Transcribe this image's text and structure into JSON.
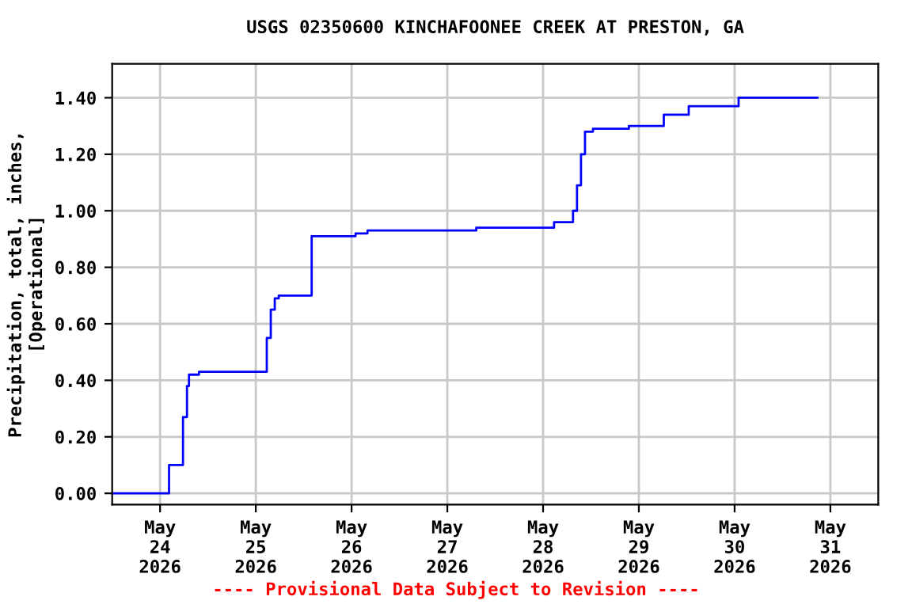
{
  "chart_data": {
    "type": "step",
    "title": "USGS 02350600 KINCHAFOONEE CREEK AT PRESTON, GA",
    "ylabel": "Precipitation, total, inches,\n[Operational]",
    "annotations": [
      "---- Provisional Data Subject to Revision ----"
    ],
    "x": [
      "2026-05-23T12:00",
      "2026-05-24T02:15",
      "2026-05-24T05:45",
      "2026-05-24T06:45",
      "2026-05-24T07:15",
      "2026-05-24T09:45",
      "2026-05-25T02:45",
      "2026-05-25T03:45",
      "2026-05-25T04:45",
      "2026-05-25T05:45",
      "2026-05-25T14:00",
      "2026-05-26T01:00",
      "2026-05-26T04:00",
      "2026-05-27T07:15",
      "2026-05-28T02:45",
      "2026-05-28T07:30",
      "2026-05-28T08:30",
      "2026-05-28T09:30",
      "2026-05-28T10:30",
      "2026-05-28T12:30",
      "2026-05-28T21:30",
      "2026-05-29T06:15",
      "2026-05-29T12:30",
      "2026-05-30T01:00",
      "2026-05-30T20:45"
    ],
    "series": [
      {
        "color": "#0000ff",
        "values": [
          0.0,
          0.1,
          0.27,
          0.38,
          0.42,
          0.43,
          0.55,
          0.65,
          0.69,
          0.7,
          0.91,
          0.92,
          0.93,
          0.94,
          0.96,
          1.0,
          1.09,
          1.2,
          1.28,
          1.29,
          1.3,
          1.34,
          1.37,
          1.4,
          1.4
        ]
      }
    ],
    "xlim": [
      "2026-05-23T12:00",
      "2026-05-31T12:00"
    ],
    "xticks": [
      {
        "value": "2026-05-24",
        "label": "May\n24\n2026"
      },
      {
        "value": "2026-05-25",
        "label": "May\n25\n2026"
      },
      {
        "value": "2026-05-26",
        "label": "May\n26\n2026"
      },
      {
        "value": "2026-05-27",
        "label": "May\n27\n2026"
      },
      {
        "value": "2026-05-28",
        "label": "May\n28\n2026"
      },
      {
        "value": "2026-05-29",
        "label": "May\n29\n2026"
      },
      {
        "value": "2026-05-30",
        "label": "May\n30\n2026"
      },
      {
        "value": "2026-05-31",
        "label": "May\n31\n2026"
      }
    ],
    "ylim": [
      -0.04,
      1.52
    ],
    "yticks": [
      {
        "value": 0,
        "label": "0.00"
      },
      {
        "value": 0.2,
        "label": "0.20"
      },
      {
        "value": 0.4,
        "label": "0.40"
      },
      {
        "value": 0.6,
        "label": "0.60"
      },
      {
        "value": 0.8,
        "label": "0.80"
      },
      {
        "value": 1.0,
        "label": "1.00"
      },
      {
        "value": 1.2,
        "label": "1.20"
      },
      {
        "value": 1.4,
        "label": "1.40"
      }
    ],
    "grid": true,
    "legend": false
  }
}
